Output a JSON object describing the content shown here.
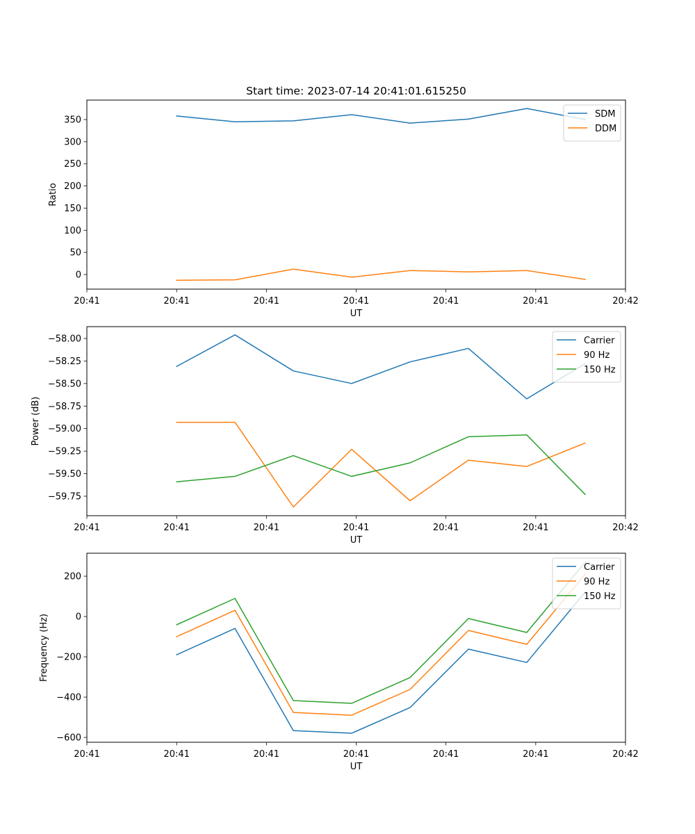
{
  "figure": {
    "title": "Start time: 2023-07-14 20:41:01.615250"
  },
  "colors": {
    "blue": "#1f77b4",
    "orange": "#ff7f0e",
    "green": "#2ca02c"
  },
  "chart_data": [
    {
      "type": "line",
      "title": "Start time: 2023-07-14 20:41:01.615250",
      "xlabel": "UT",
      "ylabel": "Ratio",
      "x": [
        0.5,
        1.15,
        1.8,
        2.45,
        3.1,
        3.75,
        4.4,
        5.05
      ],
      "xlim": [
        -0.5,
        5.5
      ],
      "xticks": [
        -0.5,
        0.5,
        1.5,
        2.5,
        3.5,
        4.5,
        5.5
      ],
      "xtick_labels": [
        "20:41",
        "20:41",
        "20:41",
        "20:41",
        "20:41",
        "20:41",
        "20:42"
      ],
      "ylim": [
        -33,
        394
      ],
      "yticks": [
        0,
        50,
        100,
        150,
        200,
        250,
        300,
        350
      ],
      "ytick_labels": [
        "0",
        "50",
        "100",
        "150",
        "200",
        "250",
        "300",
        "350"
      ],
      "legend": "upper-right",
      "grid": false,
      "series": [
        {
          "name": "SDM",
          "color": "#1f77b4",
          "values": [
            358,
            345,
            347,
            361,
            342,
            351,
            375,
            350
          ]
        },
        {
          "name": "DDM",
          "color": "#ff7f0e",
          "values": [
            -13,
            -12,
            12,
            -6,
            9,
            6,
            9,
            -11
          ]
        }
      ]
    },
    {
      "type": "line",
      "title": "",
      "xlabel": "UT",
      "ylabel": "Power (dB)",
      "x": [
        0.5,
        1.15,
        1.8,
        2.45,
        3.1,
        3.75,
        4.4,
        5.05
      ],
      "xlim": [
        -0.5,
        5.5
      ],
      "xticks": [
        -0.5,
        0.5,
        1.5,
        2.5,
        3.5,
        4.5,
        5.5
      ],
      "xtick_labels": [
        "20:41",
        "20:41",
        "20:41",
        "20:41",
        "20:41",
        "20:41",
        "20:42"
      ],
      "ylim": [
        -59.966,
        -57.869
      ],
      "yticks": [
        -59.75,
        -59.5,
        -59.25,
        -59.0,
        -58.75,
        -58.5,
        -58.25,
        -58.0
      ],
      "ytick_labels": [
        "−59.75",
        "−59.50",
        "−59.25",
        "−59.00",
        "−58.75",
        "−58.50",
        "−58.25",
        "−58.00"
      ],
      "legend": "upper-right",
      "grid": false,
      "series": [
        {
          "name": "Carrier",
          "color": "#1f77b4",
          "values": [
            -58.31,
            -57.96,
            -58.36,
            -58.5,
            -58.26,
            -58.11,
            -58.67,
            -58.28
          ]
        },
        {
          "name": "90 Hz",
          "color": "#ff7f0e",
          "values": [
            -58.93,
            -58.93,
            -59.87,
            -59.23,
            -59.8,
            -59.35,
            -59.42,
            -59.16
          ]
        },
        {
          "name": "150 Hz",
          "color": "#2ca02c",
          "values": [
            -59.59,
            -59.53,
            -59.3,
            -59.53,
            -59.38,
            -59.09,
            -59.07,
            -59.73
          ]
        }
      ]
    },
    {
      "type": "line",
      "title": "",
      "xlabel": "UT",
      "ylabel": "Frequency (Hz)",
      "x": [
        0.5,
        1.15,
        1.8,
        2.45,
        3.1,
        3.75,
        4.4,
        5.05
      ],
      "xlim": [
        -0.5,
        5.5
      ],
      "xticks": [
        -0.5,
        0.5,
        1.5,
        2.5,
        3.5,
        4.5,
        5.5
      ],
      "xtick_labels": [
        "20:41",
        "20:41",
        "20:41",
        "20:41",
        "20:41",
        "20:41",
        "20:42"
      ],
      "ylim": [
        -624,
        314
      ],
      "yticks": [
        -600,
        -400,
        -200,
        0,
        200
      ],
      "ytick_labels": [
        "−600",
        "−400",
        "−200",
        "0",
        "200"
      ],
      "legend": "upper-right",
      "grid": false,
      "series": [
        {
          "name": "Carrier",
          "color": "#1f77b4",
          "values": [
            -190,
            -59,
            -566,
            -579,
            -452,
            -162,
            -228,
            121
          ]
        },
        {
          "name": "90 Hz",
          "color": "#ff7f0e",
          "values": [
            -100,
            31,
            -476,
            -490,
            -362,
            -69,
            -138,
            210
          ]
        },
        {
          "name": "150 Hz",
          "color": "#2ca02c",
          "values": [
            -41,
            90,
            -417,
            -431,
            -303,
            -10,
            -79,
            269
          ]
        }
      ]
    }
  ]
}
